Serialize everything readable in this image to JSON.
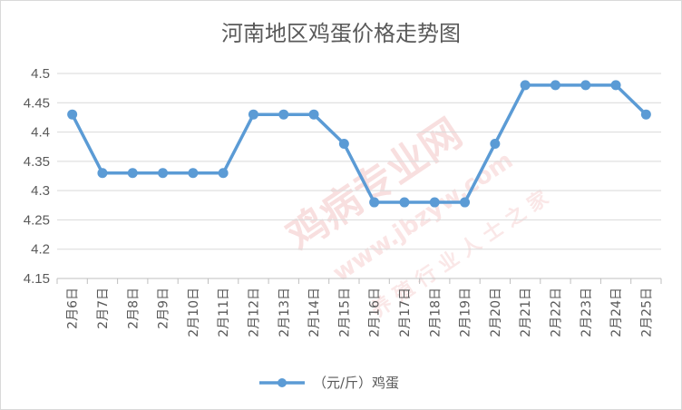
{
  "chart_data": {
    "type": "line",
    "title": "河南地区鸡蛋价格走势图",
    "xlabel": "",
    "ylabel": "",
    "categories": [
      "2月6日",
      "2月7日",
      "2月8日",
      "2月9日",
      "2月10日",
      "2月11日",
      "2月12日",
      "2月13日",
      "2月14日",
      "2月15日",
      "2月16日",
      "2月17日",
      "2月18日",
      "2月19日",
      "2月20日",
      "2月21日",
      "2月22日",
      "2月23日",
      "2月24日",
      "2月25日"
    ],
    "series": [
      {
        "name": "（元/斤）鸡蛋",
        "color": "#5b9bd5",
        "values": [
          4.43,
          4.33,
          4.33,
          4.33,
          4.33,
          4.33,
          4.43,
          4.43,
          4.43,
          4.38,
          4.28,
          4.28,
          4.28,
          4.28,
          4.38,
          4.48,
          4.48,
          4.48,
          4.48,
          4.43
        ]
      }
    ],
    "ylim": [
      4.15,
      4.5
    ],
    "y_ticks": [
      "4.15",
      "4.2",
      "4.25",
      "4.3",
      "4.35",
      "4.4",
      "4.45",
      "4.5"
    ],
    "grid": true,
    "legend_position": "bottom"
  },
  "watermark": {
    "text": "鸡病专业网",
    "url": "www.jbzyw.com",
    "slogan": "养 殖 行 业 人 士 之 家",
    "color": "#f3c4c4"
  }
}
